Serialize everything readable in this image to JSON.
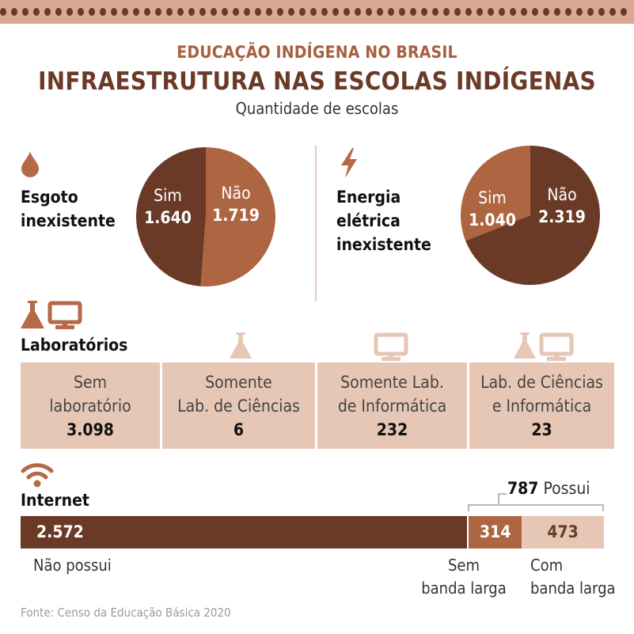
{
  "kicker": "EDUCAÇÃO INDÍGENA NO BRASIL",
  "title": "INFRAESTRUTURA NAS ESCOLAS INDÍGENAS",
  "subtitle": "Quantidade de escolas",
  "colors": {
    "dark": "#6b3a27",
    "medium": "#ad6641",
    "light": "#e6c6b5",
    "band": "#d9a992",
    "icon": "#b36a45"
  },
  "sewage": {
    "label_line1": "Esgoto",
    "label_line2": "inexistente",
    "yes_label": "Sim",
    "yes_value": "1.640",
    "no_label": "Não",
    "no_value": "1.719",
    "icon": "drop-icon"
  },
  "energy": {
    "label_line1": "Energia",
    "label_line2": "elétrica",
    "label_line3": "inexistente",
    "yes_label": "Sim",
    "yes_value": "1.040",
    "no_label": "Não",
    "no_value": "2.319",
    "icon": "lightning-icon"
  },
  "labs": {
    "heading": "Laboratórios",
    "icons": [
      "flask-icon",
      "monitor-icon"
    ],
    "cells": [
      {
        "line1": "Sem",
        "line2": "laboratório",
        "value": "3.098"
      },
      {
        "line1": "Somente",
        "line2": "Lab. de Ciências",
        "value": "6"
      },
      {
        "line1": "Somente Lab.",
        "line2": "de Informática",
        "value": "232"
      },
      {
        "line1": "Lab. de Ciências",
        "line2": "e Informática",
        "value": "23"
      }
    ]
  },
  "internet": {
    "heading": "Internet",
    "icon": "wifi-icon",
    "has_value": "787",
    "has_label": "Possui",
    "no_value": "2.572",
    "no_label": "Não possui",
    "narrow_value": "314",
    "narrow_label_1": "Sem",
    "narrow_label_2": "banda larga",
    "broad_value": "473",
    "broad_label_1": "Com",
    "broad_label_2": "banda larga"
  },
  "source": "Fonte: Censo da Educação Básica 2020",
  "chart_data": [
    {
      "type": "pie",
      "title": "Esgoto inexistente",
      "labels": [
        "Sim",
        "Não"
      ],
      "values": [
        1640,
        1719
      ]
    },
    {
      "type": "pie",
      "title": "Energia elétrica inexistente",
      "labels": [
        "Sim",
        "Não"
      ],
      "values": [
        1040,
        2319
      ]
    },
    {
      "type": "table",
      "title": "Laboratórios",
      "categories": [
        "Sem laboratório",
        "Somente Lab. de Ciências",
        "Somente Lab. de Informática",
        "Lab. de Ciências e Informática"
      ],
      "values": [
        3098,
        6,
        232,
        23
      ]
    },
    {
      "type": "bar",
      "title": "Internet",
      "orientation": "horizontal-stacked",
      "categories": [
        "Não possui",
        "Sem banda larga",
        "Com banda larga"
      ],
      "values": [
        2572,
        314,
        473
      ],
      "group_annotation": {
        "label": "Possui",
        "value": 787
      }
    }
  ]
}
